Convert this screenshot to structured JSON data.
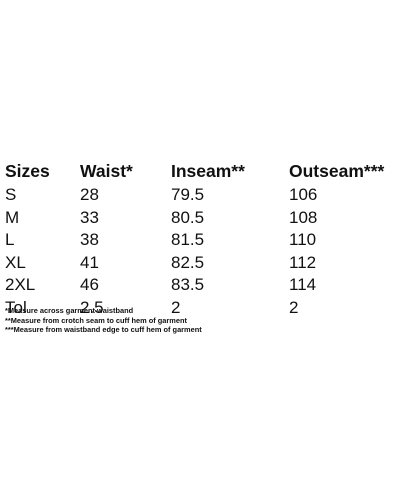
{
  "table": {
    "headers": [
      "Sizes",
      "Waist*",
      "Inseam**",
      "Outseam***"
    ],
    "rows": [
      [
        "S",
        "28",
        "79.5",
        "106"
      ],
      [
        "M",
        "33",
        "80.5",
        "108"
      ],
      [
        "L",
        "38",
        "81.5",
        "110"
      ],
      [
        "XL",
        "41",
        "82.5",
        "112"
      ],
      [
        "2XL",
        "46",
        "83.5",
        "114"
      ],
      [
        "Tol",
        "2.5",
        "2",
        "2"
      ]
    ]
  },
  "notes": [
    "*Measure across garment waistband",
    "**Measure from crotch seam to cuff hem of garment",
    "***Measure from waistband edge to cuff hem of garment"
  ]
}
